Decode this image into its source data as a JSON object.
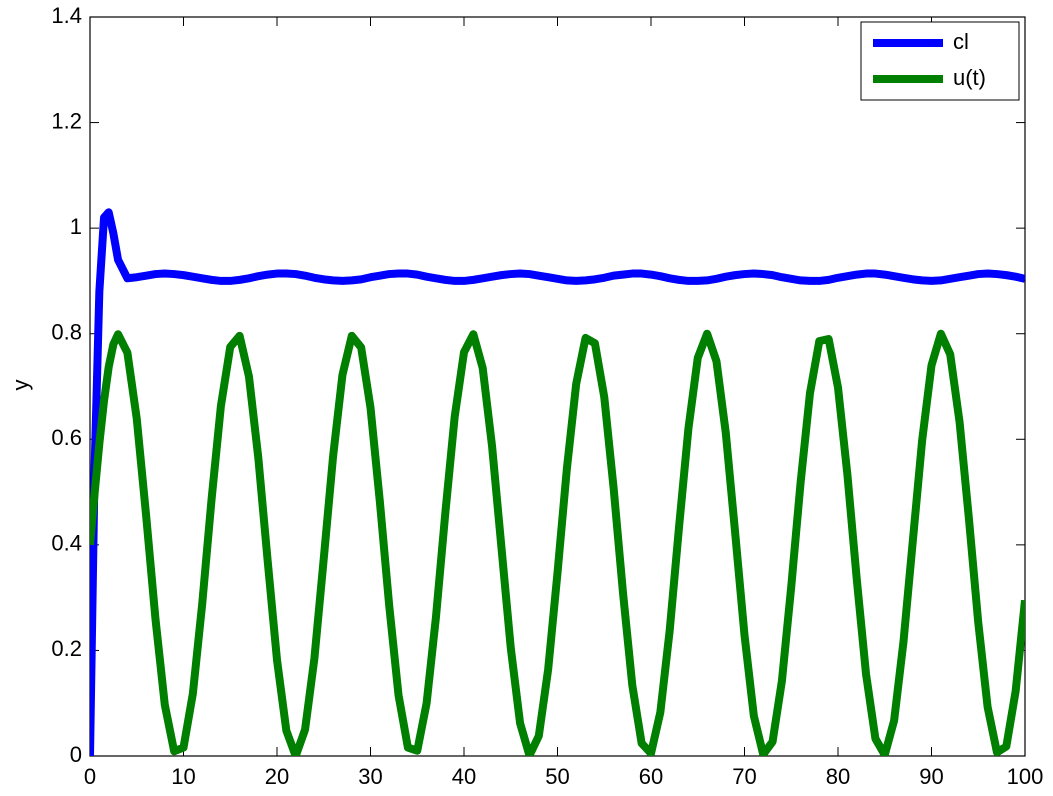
{
  "chart_data": {
    "type": "line",
    "ylabel": "y",
    "legend": "upper right",
    "grid": false,
    "xlim": [
      0,
      100
    ],
    "ylim": [
      0,
      1.4
    ],
    "xticks": [
      0,
      10,
      20,
      30,
      40,
      50,
      60,
      70,
      80,
      90,
      100
    ],
    "yticks": [
      0,
      0.2,
      0.4,
      0.6,
      0.8,
      1,
      1.2,
      1.4
    ],
    "x": [
      0,
      0.5,
      1,
      1.5,
      2,
      2.5,
      3,
      4,
      5,
      6,
      7,
      8,
      9,
      10,
      11,
      12,
      13,
      14,
      15,
      16,
      17,
      18,
      19,
      20,
      21,
      22,
      23,
      24,
      25,
      26,
      27,
      28,
      29,
      30,
      31,
      32,
      33,
      34,
      35,
      36,
      37,
      38,
      39,
      40,
      41,
      42,
      43,
      44,
      45,
      46,
      47,
      48,
      49,
      50,
      51,
      52,
      53,
      54,
      55,
      56,
      57,
      58,
      59,
      60,
      61,
      62,
      63,
      64,
      65,
      66,
      67,
      68,
      69,
      70,
      71,
      72,
      73,
      74,
      75,
      76,
      77,
      78,
      79,
      80,
      81,
      82,
      83,
      84,
      85,
      86,
      87,
      88,
      89,
      90,
      91,
      92,
      93,
      94,
      95,
      96,
      97,
      98,
      99,
      100
    ],
    "series": [
      {
        "name": "cl",
        "color": "#0000ff",
        "values": [
          0,
          0.55,
          0.88,
          1.02,
          1.03,
          0.99,
          0.94,
          0.905,
          0.907,
          0.91,
          0.913,
          0.914,
          0.913,
          0.911,
          0.908,
          0.905,
          0.902,
          0.9,
          0.9,
          0.902,
          0.905,
          0.909,
          0.912,
          0.914,
          0.914,
          0.913,
          0.91,
          0.906,
          0.903,
          0.901,
          0.9,
          0.901,
          0.903,
          0.907,
          0.91,
          0.913,
          0.914,
          0.914,
          0.912,
          0.908,
          0.905,
          0.902,
          0.9,
          0.9,
          0.902,
          0.905,
          0.908,
          0.911,
          0.913,
          0.914,
          0.913,
          0.91,
          0.907,
          0.904,
          0.901,
          0.9,
          0.901,
          0.903,
          0.906,
          0.91,
          0.912,
          0.914,
          0.914,
          0.912,
          0.909,
          0.905,
          0.902,
          0.9,
          0.9,
          0.901,
          0.904,
          0.908,
          0.911,
          0.913,
          0.914,
          0.913,
          0.911,
          0.907,
          0.904,
          0.901,
          0.9,
          0.9,
          0.902,
          0.906,
          0.909,
          0.912,
          0.914,
          0.914,
          0.912,
          0.909,
          0.906,
          0.903,
          0.901,
          0.9,
          0.901,
          0.904,
          0.907,
          0.91,
          0.913,
          0.914,
          0.913,
          0.911,
          0.908,
          0.904
        ]
      },
      {
        "name": "u(t)",
        "color": "#007f00",
        "values": [
          0.4,
          0.499,
          0.592,
          0.673,
          0.737,
          0.78,
          0.799,
          0.764,
          0.639,
          0.456,
          0.26,
          0.097,
          0.009,
          0.016,
          0.118,
          0.288,
          0.486,
          0.663,
          0.775,
          0.796,
          0.719,
          0.565,
          0.37,
          0.182,
          0.048,
          0,
          0.05,
          0.185,
          0.374,
          0.568,
          0.722,
          0.796,
          0.774,
          0.66,
          0.482,
          0.285,
          0.115,
          0.016,
          0.01,
          0.1,
          0.263,
          0.46,
          0.642,
          0.765,
          0.799,
          0.735,
          0.587,
          0.396,
          0.205,
          0.062,
          0.001,
          0.038,
          0.164,
          0.347,
          0.544,
          0.705,
          0.792,
          0.782,
          0.68,
          0.508,
          0.31,
          0.134,
          0.024,
          0.005,
          0.083,
          0.238,
          0.434,
          0.62,
          0.754,
          0.8,
          0.748,
          0.612,
          0.423,
          0.229,
          0.076,
          0.003,
          0.027,
          0.142,
          0.321,
          0.518,
          0.687,
          0.786,
          0.79,
          0.698,
          0.534,
          0.336,
          0.155,
          0.033,
          0.002,
          0.067,
          0.216,
          0.407,
          0.598,
          0.74,
          0.8,
          0.761,
          0.633,
          0.45,
          0.253,
          0.093,
          0.007,
          0.018,
          0.123,
          0.295
        ]
      }
    ]
  }
}
